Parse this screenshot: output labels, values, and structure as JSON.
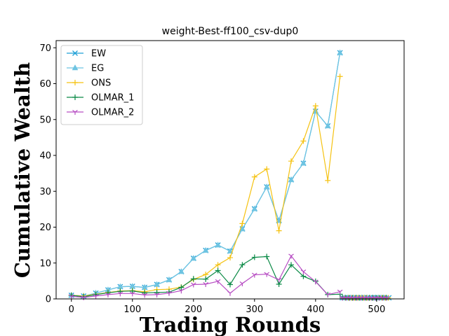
{
  "chart_data": {
    "type": "line",
    "title": "weight-Best-ff100_csv-dup0",
    "xlabel": "Trading Rounds",
    "ylabel": "Cumulative Wealth",
    "xlim": [
      -25,
      545
    ],
    "ylim": [
      0,
      72
    ],
    "xticks": [
      0,
      100,
      200,
      300,
      400,
      500
    ],
    "yticks": [
      0,
      10,
      20,
      30,
      40,
      50,
      60,
      70
    ],
    "legend_position": "upper-left",
    "grid": false,
    "x": [
      0,
      20,
      40,
      60,
      80,
      100,
      120,
      140,
      160,
      180,
      200,
      220,
      240,
      260,
      280,
      300,
      320,
      340,
      360,
      380,
      400,
      420,
      440
    ],
    "series": [
      {
        "name": "EW",
        "color": "#1f9fd6",
        "marker": "x",
        "values": [
          1.0,
          0.8,
          1.6,
          2.5,
          3.4,
          3.5,
          3.2,
          4.0,
          5.3,
          7.6,
          11.3,
          13.5,
          15.0,
          13.3,
          19.5,
          25.1,
          31.2,
          21.8,
          33.2,
          37.8,
          52.3,
          48.2,
          68.6
        ]
      },
      {
        "name": "EG",
        "color": "#6ec4e2",
        "marker": "triangle",
        "values": [
          1.0,
          0.8,
          1.6,
          2.5,
          3.4,
          3.5,
          3.2,
          4.0,
          5.3,
          7.6,
          11.3,
          13.5,
          15.0,
          13.3,
          19.5,
          25.1,
          31.2,
          21.8,
          33.2,
          37.8,
          52.3,
          48.2,
          68.6
        ]
      },
      {
        "name": "ONS",
        "color": "#f5c211",
        "marker": "plus",
        "values": [
          1.0,
          0.8,
          1.3,
          1.8,
          2.2,
          2.3,
          2.0,
          2.6,
          2.7,
          3.3,
          5.4,
          6.8,
          9.5,
          11.5,
          21.0,
          34.0,
          36.2,
          19.0,
          38.4,
          44.0,
          53.8,
          33.0,
          62.0
        ]
      },
      {
        "name": "OLMAR_1",
        "color": "#0b8a46",
        "marker": "plus",
        "values": [
          1.0,
          0.6,
          1.2,
          1.7,
          2.1,
          2.2,
          1.7,
          1.8,
          1.9,
          3.2,
          5.6,
          5.5,
          7.9,
          4.0,
          9.5,
          11.6,
          11.8,
          4.1,
          9.5,
          6.3,
          4.9,
          1.2,
          1.3
        ]
      },
      {
        "name": "OLMAR_2",
        "color": "#b84fc4",
        "marker": "tri-down",
        "values": [
          0.7,
          0.4,
          0.8,
          1.2,
          1.5,
          1.5,
          1.1,
          1.2,
          1.6,
          2.3,
          4.0,
          4.1,
          4.9,
          1.6,
          4.3,
          6.7,
          6.9,
          5.3,
          12.0,
          7.6,
          4.8,
          1.2,
          2.0
        ]
      }
    ],
    "flat_tail": {
      "x_start": 440,
      "x_end": 520,
      "value": 0.3
    }
  }
}
